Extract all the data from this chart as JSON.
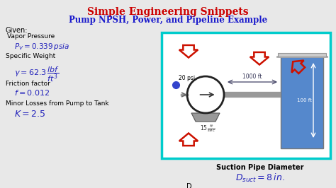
{
  "title1": "Simple Engineering Snippets",
  "title1_color": "#cc0000",
  "title2": "Pump NPSH, Power, and Pipeline Example",
  "title2_color": "#1a1acc",
  "bg_color": "#e8e8e8",
  "box_color": "#00cccc",
  "tank_color": "#5588cc",
  "given_label": "Given:",
  "vp_label": "Vapor Pressure",
  "vp_formula": "$P_V = 0.339\\,psia$",
  "sw_label": "Specific Weight",
  "sw_formula": "$\\gamma = 62.3\\,\\dfrac{lbf}{ft^3}$",
  "ff_label": "Friction factor",
  "ff_formula": "$f = 0.012$",
  "ml_label": "Minor Losses from Pump to Tank",
  "ml_formula": "$K = 2.5$",
  "suction_label": "Suction Pipe Diameter",
  "suction_formula": "$D_{suct} = 8\\,in.$",
  "d_label": "D",
  "pipe_label": "1000 ft",
  "psi_label": "20 psi",
  "height_label": "100 ft",
  "vel_label": "$15\\,\\frac{ft}{sec}$",
  "arrow_color": "#cc1100"
}
